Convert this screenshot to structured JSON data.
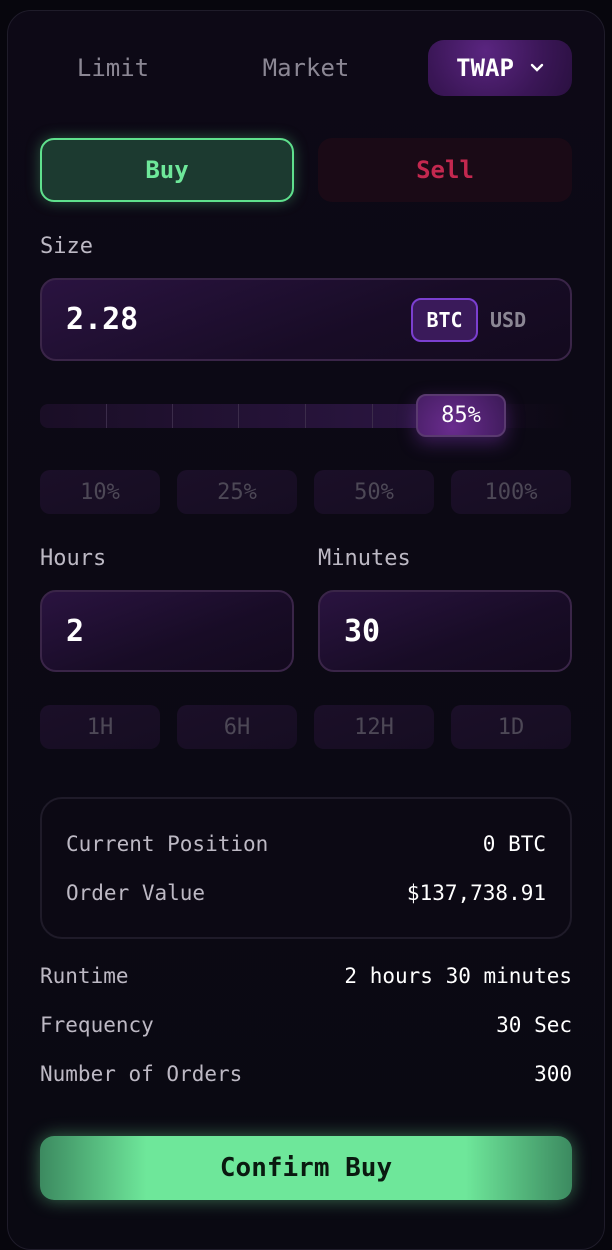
{
  "order_types": {
    "limit": "Limit",
    "market": "Market",
    "twap": "TWAP"
  },
  "side": {
    "buy": "Buy",
    "sell": "Sell",
    "selected": "Buy"
  },
  "size": {
    "label": "Size",
    "value": "2.28",
    "unit_selected": "BTC",
    "unit_other": "USD",
    "percent": 85,
    "percent_label": "85%"
  },
  "size_presets": [
    "10%",
    "25%",
    "50%",
    "100%"
  ],
  "hours": {
    "label": "Hours",
    "value": "2"
  },
  "minutes": {
    "label": "Minutes",
    "value": "30"
  },
  "time_presets": [
    "1H",
    "6H",
    "12H",
    "1D"
  ],
  "info": {
    "current_position_label": "Current Position",
    "current_position": "0 BTC",
    "order_value_label": "Order Value",
    "order_value": "$137,738.91"
  },
  "summary": [
    {
      "label": "Runtime",
      "value": "2 hours 30 minutes"
    },
    {
      "label": "Frequency",
      "value": "30 Sec"
    },
    {
      "label": "Number of Orders",
      "value": "300"
    }
  ],
  "confirm_label": "Confirm Buy",
  "colors": {
    "buy": "#6ee79a",
    "sell": "#c3284f",
    "accent": "#7b3fd0"
  }
}
